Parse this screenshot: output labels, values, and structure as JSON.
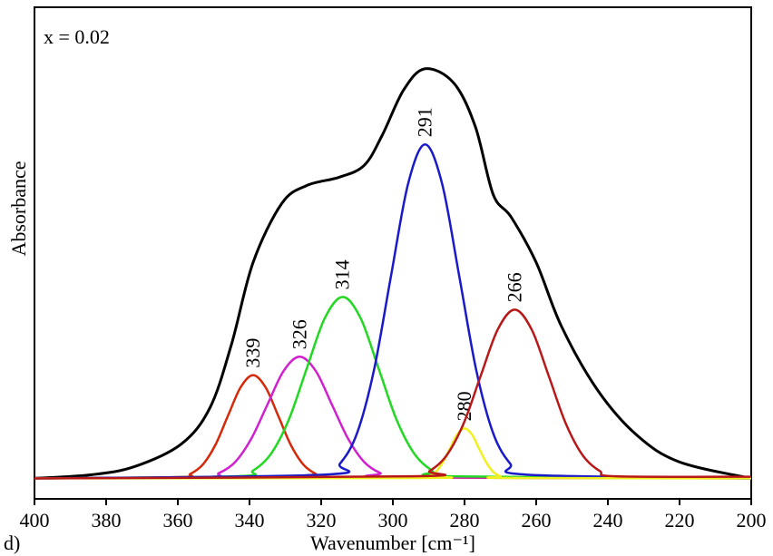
{
  "chart_data": {
    "type": "line",
    "panel_label": "d)",
    "annotation": "x = 0.02",
    "x_label": "Wavenumber [cm⁻¹]",
    "y_label": "Absorbance",
    "xlim": [
      400,
      200
    ],
    "ylim": [
      -0.05,
      1.15
    ],
    "xticks": [
      400,
      380,
      360,
      340,
      320,
      300,
      280,
      260,
      240,
      220,
      200
    ],
    "series": [
      {
        "color": "#000000",
        "x": [
          400,
          384,
          372,
          359,
          351,
          345,
          339,
          331,
          324,
          315,
          308,
          303,
          297,
          291,
          283,
          277,
          272,
          267,
          260,
          253,
          243,
          232,
          220,
          200
        ],
        "values": [
          0,
          0.009,
          0.029,
          0.084,
          0.173,
          0.328,
          0.527,
          0.671,
          0.715,
          0.735,
          0.764,
          0.837,
          0.948,
          1.0,
          0.965,
          0.859,
          0.693,
          0.638,
          0.527,
          0.372,
          0.217,
          0.106,
          0.04,
          0
        ]
      },
      {
        "color": "#d42a0a",
        "label": "339",
        "x": [
          400,
          360,
          356.5,
          353,
          349.5,
          346,
          342.5,
          339,
          335.5,
          332,
          328.5,
          325,
          321.5,
          318,
          200
        ],
        "values": [
          0,
          0.003,
          0.011,
          0.034,
          0.082,
          0.153,
          0.222,
          0.252,
          0.222,
          0.153,
          0.082,
          0.034,
          0.011,
          0.003,
          0
        ]
      },
      {
        "color": "#d020d0",
        "label": "326",
        "x": [
          400,
          353,
          348.5,
          344,
          339.5,
          335,
          330.5,
          326,
          321.5,
          317,
          312.5,
          308,
          303.5,
          299,
          200
        ],
        "values": [
          0,
          0.003,
          0.013,
          0.04,
          0.097,
          0.18,
          0.262,
          0.297,
          0.262,
          0.18,
          0.097,
          0.04,
          0.013,
          0.003,
          0
        ]
      },
      {
        "color": "#22d822",
        "label": "314",
        "x": [
          400,
          344,
          339,
          334,
          329,
          324,
          319,
          314,
          309,
          304,
          299,
          294,
          289,
          284,
          200
        ],
        "values": [
          0,
          0.005,
          0.019,
          0.06,
          0.144,
          0.269,
          0.391,
          0.443,
          0.391,
          0.269,
          0.144,
          0.06,
          0.019,
          0.005,
          0
        ]
      },
      {
        "color": "#1a1ac8",
        "label": "291",
        "x": [
          400,
          319.5,
          314.75,
          310,
          305.25,
          300.5,
          295.75,
          291,
          286.25,
          281.5,
          276.75,
          272,
          267.25,
          262.5,
          200
        ],
        "values": [
          0,
          0.009,
          0.036,
          0.11,
          0.265,
          0.495,
          0.719,
          0.815,
          0.719,
          0.495,
          0.265,
          0.11,
          0.036,
          0.009,
          0
        ]
      },
      {
        "color": "#f0f020",
        "label": "280",
        "x": [
          400,
          292,
          290,
          288,
          286,
          284,
          282,
          280,
          278,
          276,
          274,
          272,
          270,
          268,
          200
        ],
        "values": [
          0,
          0.001,
          0.005,
          0.016,
          0.04,
          0.074,
          0.108,
          0.122,
          0.108,
          0.074,
          0.04,
          0.016,
          0.005,
          0.001,
          0
        ]
      },
      {
        "color": "#b81818",
        "label": "266",
        "x": [
          400,
          294.5,
          289.75,
          285,
          280.25,
          275.5,
          270.75,
          266,
          261.25,
          256.5,
          251.75,
          247,
          242.25,
          237.5,
          200
        ],
        "values": [
          0,
          0.005,
          0.018,
          0.056,
          0.134,
          0.25,
          0.363,
          0.412,
          0.363,
          0.25,
          0.134,
          0.056,
          0.018,
          0.005,
          0.004
        ]
      }
    ]
  }
}
